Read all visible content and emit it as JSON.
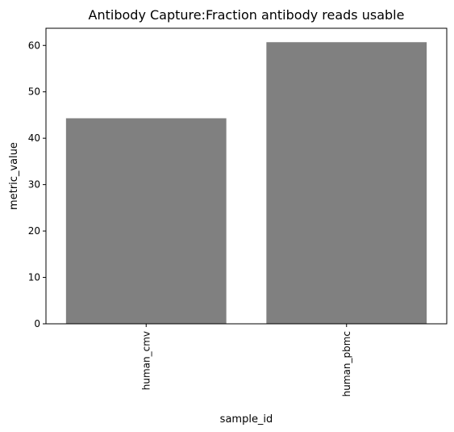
{
  "chart_data": {
    "type": "bar",
    "title": "Antibody Capture:Fraction antibody reads usable",
    "xlabel": "sample_id",
    "ylabel": "metric_value",
    "categories": [
      "human_cmv",
      "human_pbmc"
    ],
    "values": [
      44.3,
      60.7
    ],
    "ylim": [
      0,
      63.7
    ],
    "yticks": [
      0,
      10,
      20,
      30,
      40,
      50,
      60
    ],
    "bar_color": "#808080",
    "grid": false,
    "legend": "none"
  }
}
